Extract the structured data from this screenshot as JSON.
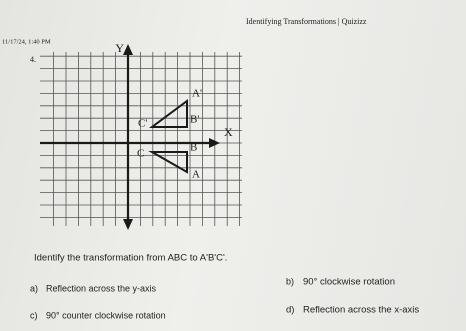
{
  "header": {
    "date": "11/17/24, 1:40 PM",
    "title": "Identifying Transformations | Quizizz"
  },
  "question": {
    "number": "4.",
    "text": "Identify the transformation from ABC to A'B'C'."
  },
  "graph": {
    "x_axis": "X",
    "y_axis": "Y",
    "points": [
      "A'",
      "B'",
      "C'",
      "A",
      "B",
      "C"
    ]
  },
  "options": [
    {
      "letter": "a)",
      "text": "Reflection across the y-axis"
    },
    {
      "letter": "b)",
      "text": "90° clockwise rotation"
    },
    {
      "letter": "c)",
      "text": "90° counter clockwise rotation"
    },
    {
      "letter": "d)",
      "text": "Reflection across the x-axis"
    }
  ]
}
